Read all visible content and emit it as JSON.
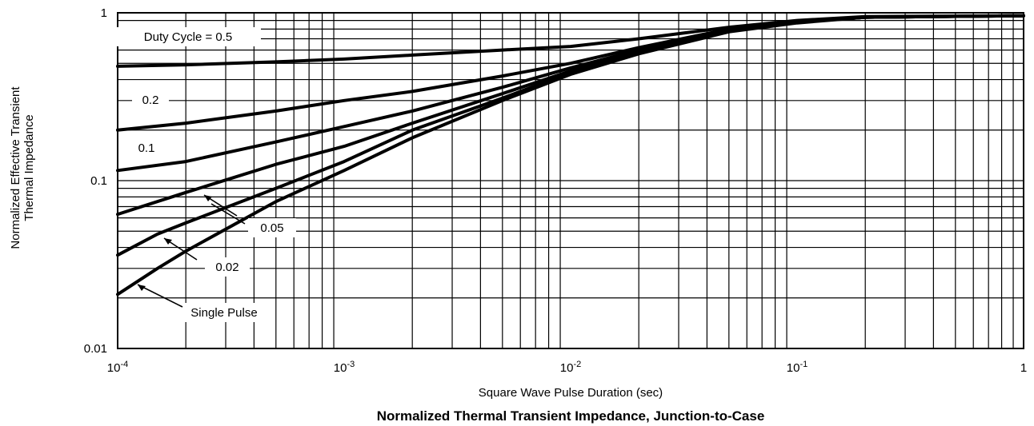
{
  "chart_data": {
    "type": "line",
    "title": "Normalized Thermal Transient Impedance, Junction-to-Case",
    "xlabel": "Square Wave Pulse Duration (sec)",
    "ylabel_lines": [
      "Normalized Effective Transient",
      "Thermal Impedance"
    ],
    "x_scale": "log",
    "y_scale": "log",
    "xlim": [
      0.0001,
      1
    ],
    "ylim": [
      0.01,
      1
    ],
    "grid": true,
    "x_ticks": [
      {
        "base": "10",
        "exp": "-4"
      },
      {
        "base": "10",
        "exp": "-3"
      },
      {
        "base": "10",
        "exp": "-2"
      },
      {
        "base": "10",
        "exp": "-1"
      },
      {
        "base": "1",
        "exp": ""
      }
    ],
    "y_ticks": [
      "0.01",
      "0.1",
      "1"
    ],
    "series": [
      {
        "name": "Duty Cycle = 0.5",
        "x": [
          0.0001,
          0.0002,
          0.0005,
          0.001,
          0.002,
          0.005,
          0.01,
          0.02,
          0.05,
          0.1,
          0.2,
          1
        ],
        "y": [
          0.48,
          0.49,
          0.51,
          0.53,
          0.56,
          0.6,
          0.63,
          0.7,
          0.82,
          0.9,
          0.95,
          0.96
        ]
      },
      {
        "name": "0.2",
        "x": [
          0.0001,
          0.0002,
          0.0005,
          0.001,
          0.002,
          0.005,
          0.01,
          0.02,
          0.05,
          0.1,
          0.2,
          1
        ],
        "y": [
          0.2,
          0.22,
          0.26,
          0.3,
          0.34,
          0.42,
          0.5,
          0.62,
          0.8,
          0.88,
          0.94,
          0.96
        ]
      },
      {
        "name": "0.1",
        "x": [
          0.0001,
          0.0002,
          0.0005,
          0.001,
          0.002,
          0.005,
          0.01,
          0.02,
          0.05,
          0.1,
          0.2,
          1
        ],
        "y": [
          0.115,
          0.13,
          0.17,
          0.21,
          0.26,
          0.36,
          0.47,
          0.6,
          0.8,
          0.88,
          0.94,
          0.96
        ]
      },
      {
        "name": "0.05",
        "x": [
          0.0001,
          0.0002,
          0.0005,
          0.001,
          0.002,
          0.005,
          0.01,
          0.02,
          0.05,
          0.1,
          0.2,
          1
        ],
        "y": [
          0.063,
          0.085,
          0.125,
          0.16,
          0.22,
          0.33,
          0.45,
          0.59,
          0.79,
          0.88,
          0.94,
          0.96
        ]
      },
      {
        "name": "0.02",
        "x": [
          0.0001,
          0.00015,
          0.0002,
          0.0005,
          0.001,
          0.002,
          0.005,
          0.01,
          0.02,
          0.05,
          0.1,
          0.2,
          1
        ],
        "y": [
          0.036,
          0.048,
          0.056,
          0.09,
          0.13,
          0.2,
          0.31,
          0.44,
          0.58,
          0.78,
          0.88,
          0.94,
          0.96
        ]
      },
      {
        "name": "Single Pulse",
        "x": [
          0.0001,
          0.00015,
          0.0002,
          0.0005,
          0.001,
          0.002,
          0.005,
          0.01,
          0.02,
          0.05,
          0.1,
          0.2,
          1
        ],
        "y": [
          0.021,
          0.03,
          0.038,
          0.075,
          0.115,
          0.18,
          0.3,
          0.43,
          0.57,
          0.77,
          0.87,
          0.94,
          0.96
        ]
      }
    ],
    "labels": [
      "Duty Cycle = 0.5",
      "0.2",
      "0.1",
      "0.05",
      "0.02",
      "Single Pulse"
    ]
  }
}
